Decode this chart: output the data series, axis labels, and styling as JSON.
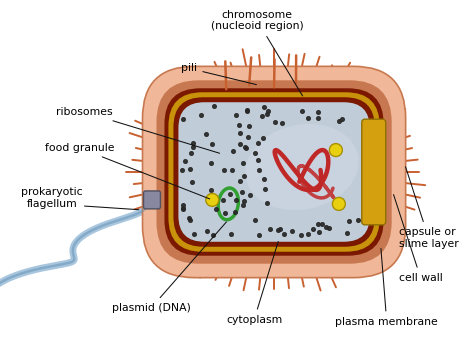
{
  "background_color": "#ffffff",
  "labels": {
    "chromosome": "chromosome\n(nucleoid region)",
    "pili": "pili",
    "ribosomes": "ribosomes",
    "food_granule": "food granule",
    "flagellum": "prokaryotic\nflagellum",
    "plasmid": "plasmid (DNA)",
    "cytoplasm": "cytoplasm",
    "plasma_membrane": "plasma membrane",
    "cell_wall": "cell wall",
    "capsule": "capsule or\nslime layer"
  },
  "colors": {
    "capsule_fill": "#f0b898",
    "cell_wall_color": "#c87850",
    "membrane_dark": "#7a1800",
    "membrane_gold": "#c8920a",
    "cytoplasm_fill": "#c0ccd8",
    "chromosome_color": "#c02828",
    "plasmid_color": "#30a030",
    "ribosome_color": "#282828",
    "food_granule_color": "#e8d010",
    "flagellum_color": "#a0c0dc",
    "flagellum_dark": "#6090b0",
    "spine_color": "#c86030",
    "label_color": "#000000",
    "cutaway_yellow": "#d4a010"
  }
}
